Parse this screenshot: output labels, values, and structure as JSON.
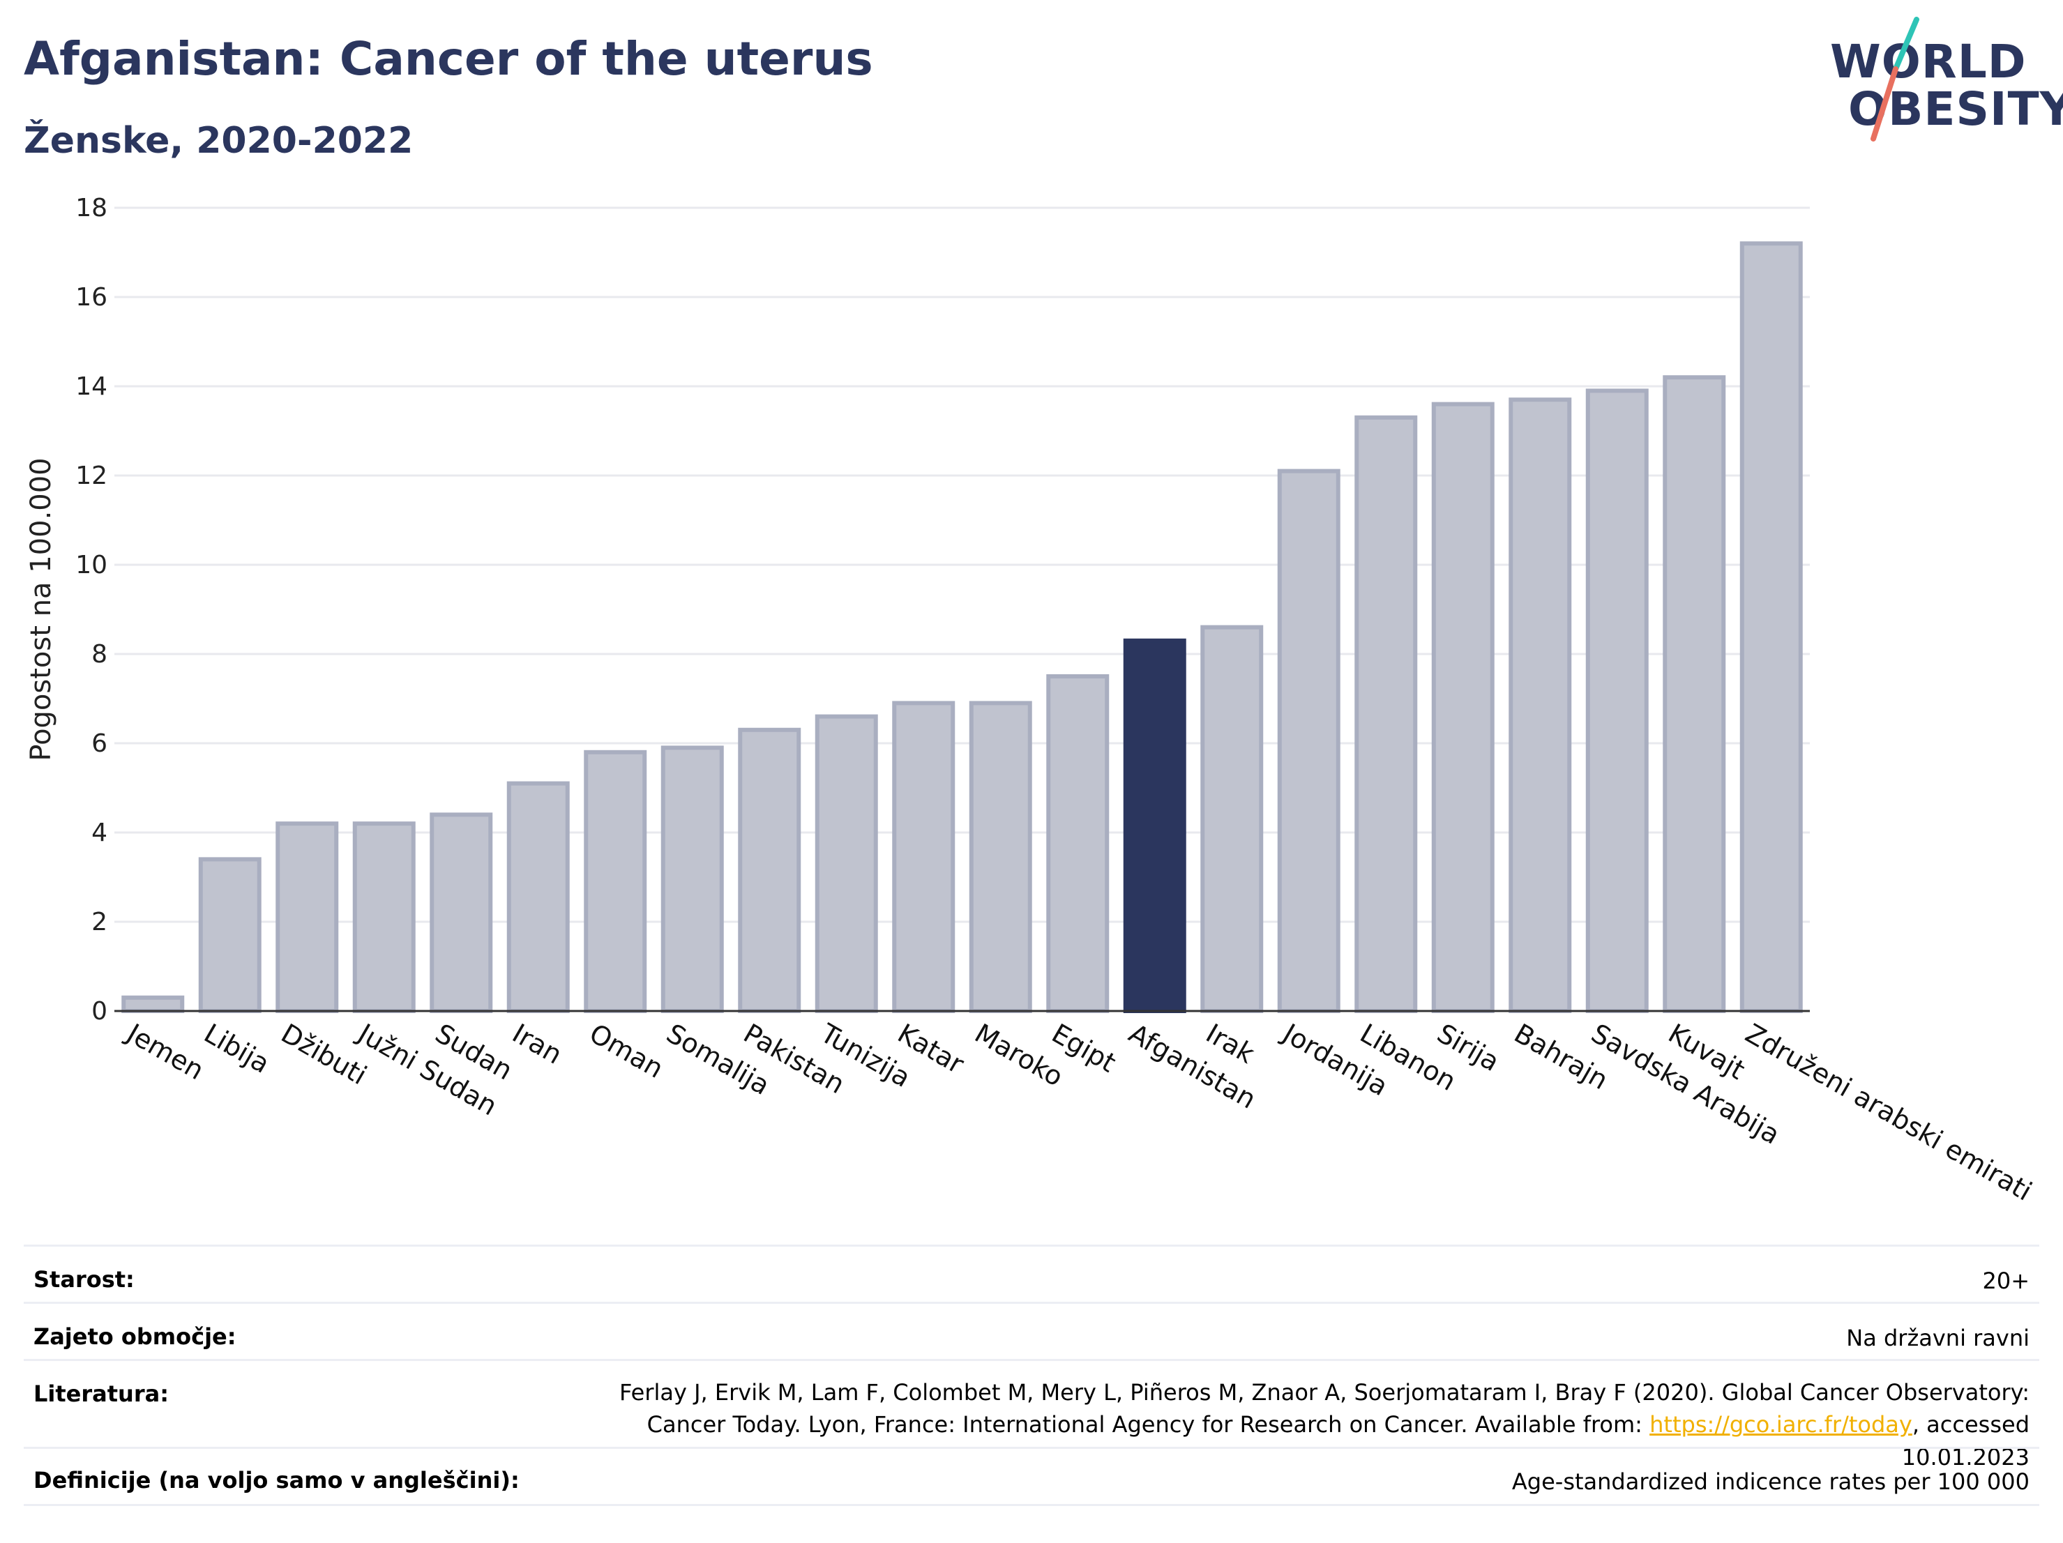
{
  "header": {
    "title": "Afganistan: Cancer of the uterus",
    "subtitle": "Ženske, 2020-2022"
  },
  "logo": {
    "line1": "WORLD",
    "line2": "OBESITY",
    "colors": {
      "text": "#2b365e",
      "slash_top": "#2ec4b6",
      "slash_bottom": "#e8705f"
    }
  },
  "chart_data": {
    "type": "bar",
    "ylabel": "Pogostost na 100.000",
    "ylim": [
      0,
      18
    ],
    "yticks": [
      0,
      2,
      4,
      6,
      8,
      10,
      12,
      14,
      16,
      18
    ],
    "grid": true,
    "highlight": "Afganistan",
    "colors": {
      "bar": "#c0c3cf",
      "bar_edge": "#a9aec0",
      "highlight": "#2b365e",
      "grid": "#e8e9ee",
      "axis": "#333333"
    },
    "categories": [
      "Jemen",
      "Libija",
      "Džibuti",
      "Južni Sudan",
      "Sudan",
      "Iran",
      "Oman",
      "Somalija",
      "Pakistan",
      "Tunizija",
      "Katar",
      "Maroko",
      "Egipt",
      "Afganistan",
      "Irak",
      "Jordanija",
      "Libanon",
      "Sirija",
      "Bahrajn",
      "Savdska Arabija",
      "Kuvajt",
      "Združeni arabski emirati"
    ],
    "values": [
      0.3,
      3.4,
      4.2,
      4.2,
      4.4,
      5.1,
      5.8,
      5.9,
      6.3,
      6.6,
      6.9,
      6.9,
      7.5,
      8.3,
      8.6,
      12.1,
      13.3,
      13.6,
      13.7,
      13.9,
      14.2,
      17.2
    ]
  },
  "meta": {
    "rows": [
      {
        "label": "Starost:",
        "value": "20+"
      },
      {
        "label": "Zajeto območje:",
        "value": "Na državni ravni"
      },
      {
        "label": "Literatura:",
        "value_before": "Ferlay J, Ervik M, Lam F, Colombet M, Mery L, Piñeros M, Znaor A, Soerjomataram I, Bray F (2020). Global Cancer Observatory: Cancer Today. Lyon, France: International Agency for Research on Cancer. Available from: ",
        "link": "https://gco.iarc.fr/today",
        "value_after": ", accessed 10.01.2023"
      },
      {
        "label": "Definicije (na voljo samo v angleščini):",
        "value": "Age-standardized indicence rates per 100 000"
      }
    ]
  }
}
